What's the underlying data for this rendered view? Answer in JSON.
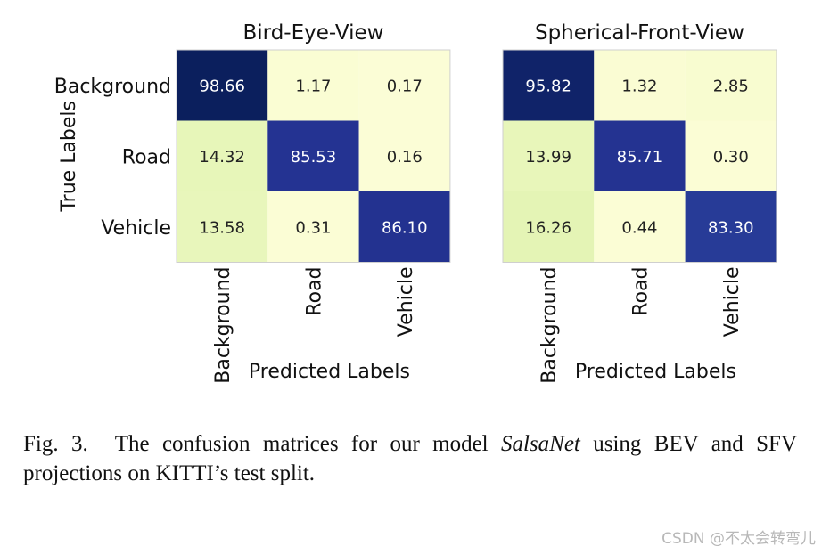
{
  "chart_data": [
    {
      "type": "heatmap",
      "title": "Bird-Eye-View",
      "xlabel": "Predicted Labels",
      "ylabel": "True Labels",
      "row_labels": [
        "Background",
        "Road",
        "Vehicle"
      ],
      "col_labels": [
        "Background",
        "Road",
        "Vehicle"
      ],
      "values": [
        [
          98.66,
          1.17,
          0.17
        ],
        [
          14.32,
          85.53,
          0.16
        ],
        [
          13.58,
          0.31,
          86.1
        ]
      ],
      "colormap": "YlGnBu",
      "vmin": 0,
      "vmax": 100
    },
    {
      "type": "heatmap",
      "title": "Spherical-Front-View",
      "xlabel": "Predicted Labels",
      "ylabel": "",
      "row_labels": [],
      "col_labels": [
        "Background",
        "Road",
        "Vehicle"
      ],
      "values": [
        [
          95.82,
          1.32,
          2.85
        ],
        [
          13.99,
          85.71,
          0.3
        ],
        [
          16.26,
          0.44,
          83.3
        ]
      ],
      "colormap": "YlGnBu",
      "vmin": 0,
      "vmax": 100
    }
  ],
  "caption": {
    "label": "Fig. 3.",
    "text_before": "The confusion matrices for our model ",
    "model_name": "SalsaNet",
    "text_after": " using BEV and SFV projections on KITTI’s test split."
  },
  "watermark": "CSDN @不太会转弯儿",
  "colors": {
    "dark_navy": "#081d58",
    "mid_blue": "#253494",
    "light_green": "#e3f4b4",
    "pale_yellow": "#fbfdd6",
    "border": "#cfcfcf"
  }
}
